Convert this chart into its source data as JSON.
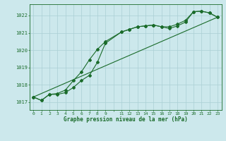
{
  "title": "Graphe pression niveau de la mer (hPa)",
  "bg_color": "#cce8ec",
  "line_color": "#1a6b2a",
  "grid_color": "#aacfd4",
  "xlim": [
    -0.5,
    23.5
  ],
  "ylim": [
    1016.55,
    1022.65
  ],
  "yticks": [
    1017,
    1018,
    1019,
    1020,
    1021,
    1022
  ],
  "xtick_labels": [
    "0",
    "1",
    "2",
    "3",
    "4",
    "5",
    "6",
    "7",
    "8",
    "9",
    "",
    "11",
    "12",
    "13",
    "14",
    "15",
    "16",
    "17",
    "18",
    "19",
    "20",
    "21",
    "22",
    "23"
  ],
  "xtick_pos": [
    0,
    1,
    2,
    3,
    4,
    5,
    6,
    7,
    8,
    9,
    10,
    11,
    12,
    13,
    14,
    15,
    16,
    17,
    18,
    19,
    20,
    21,
    22,
    23
  ],
  "series1_x": [
    0,
    1,
    2,
    3,
    4,
    5,
    6,
    7,
    8,
    9,
    11,
    12,
    13,
    14,
    15,
    16,
    17,
    18,
    19,
    20,
    21,
    22,
    23
  ],
  "series1_y": [
    1017.3,
    1017.1,
    1017.45,
    1017.45,
    1017.55,
    1017.85,
    1018.25,
    1018.55,
    1019.3,
    1020.4,
    1021.05,
    1021.2,
    1021.35,
    1021.4,
    1021.45,
    1021.35,
    1021.35,
    1021.5,
    1021.72,
    1022.22,
    1022.25,
    1022.15,
    1021.9
  ],
  "series2_x": [
    0,
    1,
    2,
    3,
    4,
    5,
    6,
    7,
    8,
    9,
    11,
    12,
    13,
    14,
    15,
    16,
    17,
    18,
    19,
    20,
    21,
    22,
    23
  ],
  "series2_y": [
    1017.3,
    1017.1,
    1017.45,
    1017.5,
    1017.7,
    1018.25,
    1018.75,
    1019.45,
    1020.05,
    1020.5,
    1021.05,
    1021.2,
    1021.35,
    1021.4,
    1021.45,
    1021.35,
    1021.25,
    1021.4,
    1021.62,
    1022.22,
    1022.25,
    1022.15,
    1021.9
  ],
  "series3_x": [
    0,
    23
  ],
  "series3_y": [
    1017.3,
    1021.9
  ]
}
